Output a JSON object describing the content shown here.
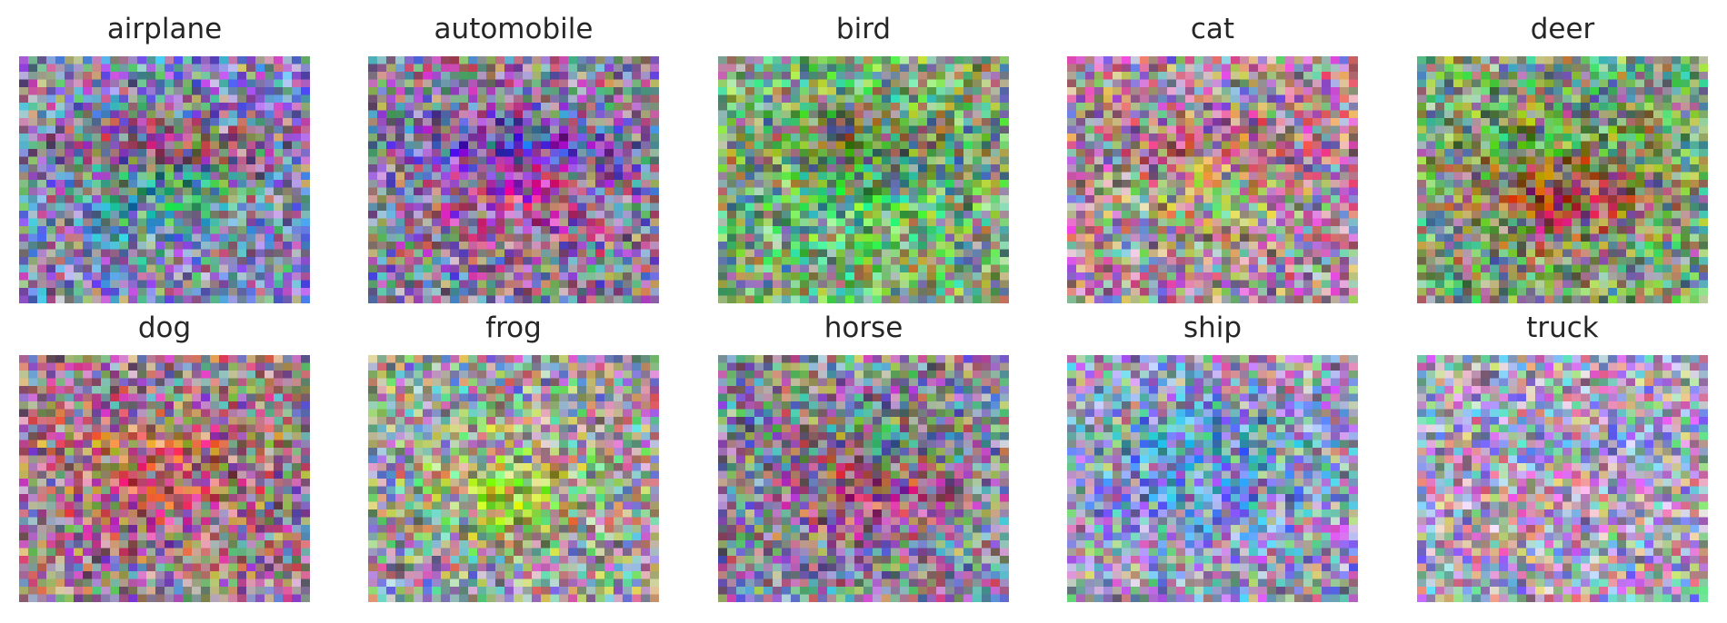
{
  "panels": [
    {
      "label": "airplane",
      "colors": {
        "base": "#8a86b0",
        "blob": "#3fa58a",
        "accent": "#c0405a"
      }
    },
    {
      "label": "automobile",
      "colors": {
        "base": "#8a7f98",
        "blob": "#c2449a",
        "accent": "#2f3fc9"
      }
    },
    {
      "label": "bird",
      "colors": {
        "base": "#7fa878",
        "blob": "#58b878",
        "accent": "#7a5a3a"
      }
    },
    {
      "label": "cat",
      "colors": {
        "base": "#a88ca0",
        "blob": "#9fb06a",
        "accent": "#b84a78"
      }
    },
    {
      "label": "deer",
      "colors": {
        "base": "#7fa07a",
        "blob": "#b0403a",
        "accent": "#5fbf4f"
      }
    },
    {
      "label": "dog",
      "colors": {
        "base": "#9a8090",
        "blob": "#b8506a",
        "accent": "#d08050"
      }
    },
    {
      "label": "frog",
      "colors": {
        "base": "#9a9aa0",
        "blob": "#9ecf3a",
        "accent": "#b09ab0"
      }
    },
    {
      "label": "horse",
      "colors": {
        "base": "#8a8a9a",
        "blob": "#b0407a",
        "accent": "#50a860"
      }
    },
    {
      "label": "ship",
      "colors": {
        "base": "#9a98b8",
        "blob": "#6a8ad8",
        "accent": "#48a0c8"
      }
    },
    {
      "label": "truck",
      "colors": {
        "base": "#a8a0b8",
        "blob": "#b898b0",
        "accent": "#8aa8d0"
      }
    }
  ]
}
